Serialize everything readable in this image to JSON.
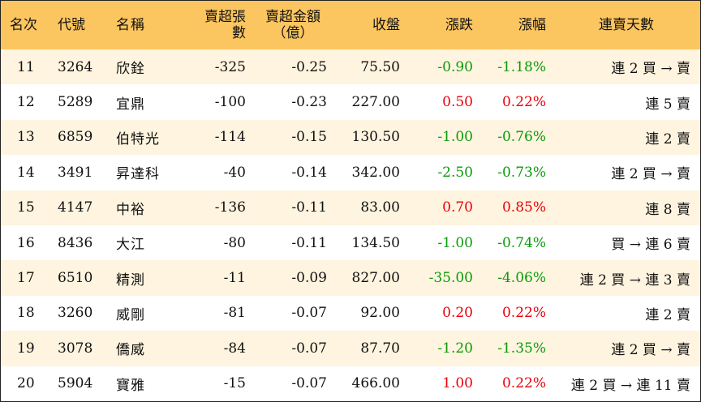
{
  "table": {
    "headers": {
      "rank": "名次",
      "code": "代號",
      "name": "名稱",
      "sell_lots": "賣超張數",
      "sell_amount_line1": "賣超金額",
      "sell_amount_line2": "（億）",
      "close": "收盤",
      "change": "漲跌",
      "change_pct": "漲幅",
      "streak": "連賣天數"
    },
    "rows": [
      {
        "rank": "11",
        "code": "3264",
        "name": "欣銓",
        "sell_lots": "-325",
        "sell_amount": "-0.25",
        "close": "75.50",
        "change": "-0.90",
        "change_pct": "-1.18%",
        "direction": "down",
        "streak": "連 2 買 → 賣"
      },
      {
        "rank": "12",
        "code": "5289",
        "name": "宜鼎",
        "sell_lots": "-100",
        "sell_amount": "-0.23",
        "close": "227.00",
        "change": "0.50",
        "change_pct": "0.22%",
        "direction": "up",
        "streak": "連 5 賣"
      },
      {
        "rank": "13",
        "code": "6859",
        "name": "伯特光",
        "sell_lots": "-114",
        "sell_amount": "-0.15",
        "close": "130.50",
        "change": "-1.00",
        "change_pct": "-0.76%",
        "direction": "down",
        "streak": "連 2 賣"
      },
      {
        "rank": "14",
        "code": "3491",
        "name": "昇達科",
        "sell_lots": "-40",
        "sell_amount": "-0.14",
        "close": "342.00",
        "change": "-2.50",
        "change_pct": "-0.73%",
        "direction": "down",
        "streak": "連 2 買 → 賣"
      },
      {
        "rank": "15",
        "code": "4147",
        "name": "中裕",
        "sell_lots": "-136",
        "sell_amount": "-0.11",
        "close": "83.00",
        "change": "0.70",
        "change_pct": "0.85%",
        "direction": "up",
        "streak": "連 8 賣"
      },
      {
        "rank": "16",
        "code": "8436",
        "name": "大江",
        "sell_lots": "-80",
        "sell_amount": "-0.11",
        "close": "134.50",
        "change": "-1.00",
        "change_pct": "-0.74%",
        "direction": "down",
        "streak": "買 → 連 6 賣"
      },
      {
        "rank": "17",
        "code": "6510",
        "name": "精測",
        "sell_lots": "-11",
        "sell_amount": "-0.09",
        "close": "827.00",
        "change": "-35.00",
        "change_pct": "-4.06%",
        "direction": "down",
        "streak": "連 2 買 → 連 3 賣"
      },
      {
        "rank": "18",
        "code": "3260",
        "name": "威剛",
        "sell_lots": "-81",
        "sell_amount": "-0.07",
        "close": "92.00",
        "change": "0.20",
        "change_pct": "0.22%",
        "direction": "up",
        "streak": "連 2 賣"
      },
      {
        "rank": "19",
        "code": "3078",
        "name": "僑威",
        "sell_lots": "-84",
        "sell_amount": "-0.07",
        "close": "87.70",
        "change": "-1.20",
        "change_pct": "-1.35%",
        "direction": "down",
        "streak": "連 2 買 → 賣"
      },
      {
        "rank": "20",
        "code": "5904",
        "name": "寶雅",
        "sell_lots": "-15",
        "sell_amount": "-0.07",
        "close": "466.00",
        "change": "1.00",
        "change_pct": "0.22%",
        "direction": "up",
        "streak": "連 2 買 → 連 11 賣"
      }
    ]
  },
  "colors": {
    "header_bg": "#fbc55f",
    "stripe_bg": "#fef4df",
    "up": "#e8000b",
    "down": "#0b9a0b"
  }
}
